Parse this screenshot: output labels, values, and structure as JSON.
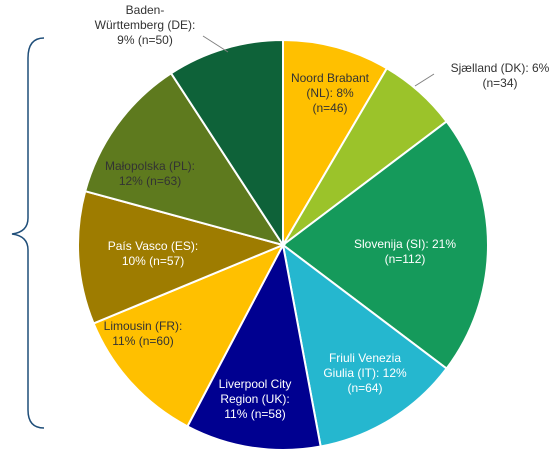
{
  "chart_data": {
    "type": "pie",
    "labels": [
      {
        "lines": [
          "Noord Brabant",
          "(NL): 8%",
          "(n=46)"
        ]
      },
      {
        "lines": [
          "Sjælland (DK): 6%",
          "(n=34)"
        ]
      },
      {
        "lines": [
          "Slovenija (SI): 21%",
          "(n=112)"
        ]
      },
      {
        "lines": [
          "Friuli Venezia",
          "Giulia (IT): 12%",
          "(n=64)"
        ]
      },
      {
        "lines": [
          "Liverpool City",
          "Region (UK):",
          "11% (n=58)"
        ]
      },
      {
        "lines": [
          "Limousin (FR):",
          "11% (n=60)"
        ]
      },
      {
        "lines": [
          "País Vasco (ES):",
          "10% (n=57)"
        ]
      },
      {
        "lines": [
          "Małopolska (PL):",
          "12% (n=63)"
        ]
      },
      {
        "lines": [
          "Baden-",
          "Württemberg (DE):",
          "9% (n=50)"
        ]
      }
    ],
    "slices": [
      {
        "name": "Noord Brabant (NL)",
        "percent": 8,
        "n": 46,
        "color": "#FFC000"
      },
      {
        "name": "Sjælland (DK)",
        "percent": 6,
        "n": 34,
        "color": "#9BC32A"
      },
      {
        "name": "Slovenija (SI)",
        "percent": 21,
        "n": 112,
        "color": "#159A5B"
      },
      {
        "name": "Friuli Venezia Giulia (IT)",
        "percent": 12,
        "n": 64,
        "color": "#25B7CF"
      },
      {
        "name": "Liverpool City Region (UK)",
        "percent": 11,
        "n": 58,
        "color": "#000090"
      },
      {
        "name": "Limousin (FR)",
        "percent": 11,
        "n": 60,
        "color": "#FFC000"
      },
      {
        "name": "País Vasco (ES)",
        "percent": 10,
        "n": 57,
        "color": "#9E7C00"
      },
      {
        "name": "Małopolska (PL)",
        "percent": 12,
        "n": 63,
        "color": "#5E7A1E"
      },
      {
        "name": "Baden-Württemberg (DE)",
        "percent": 9,
        "n": 50,
        "color": "#0E6239"
      }
    ],
    "label_colors": [
      "#333333",
      "#333333",
      "#ffffff",
      "#ffffff",
      "#ffffff",
      "#333333",
      "#ffffff",
      "#333333",
      "#333333"
    ],
    "bracket_color": "#1F4E79"
  }
}
